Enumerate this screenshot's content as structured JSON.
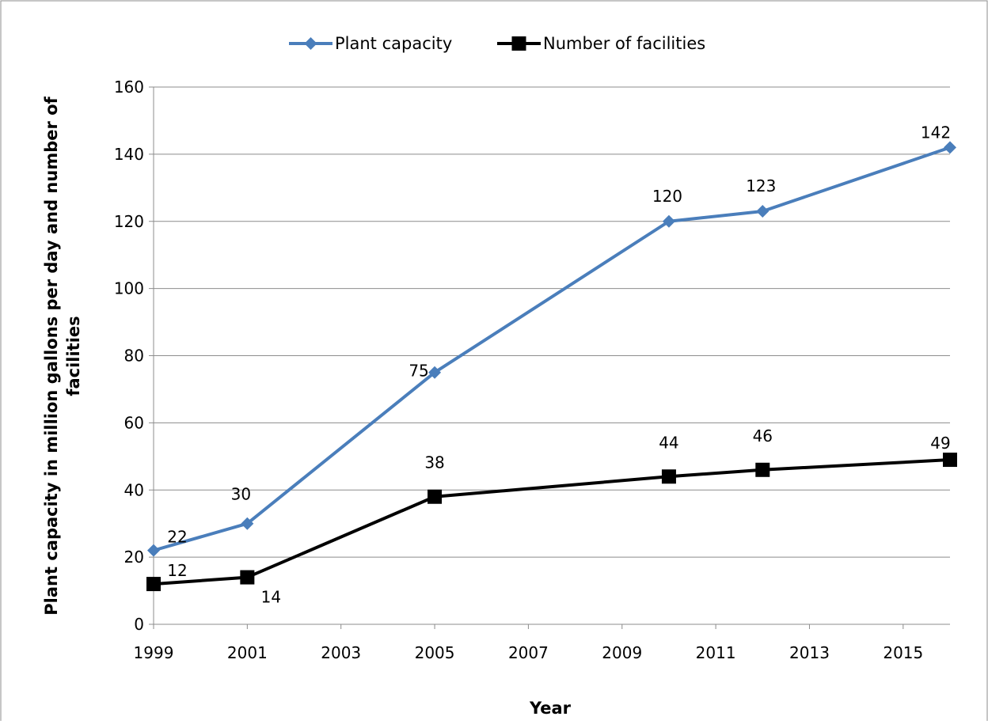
{
  "chart_data": {
    "type": "line",
    "title": "",
    "xlabel": "Year",
    "ylabel": "Plant capacity in million gallons per day and number of facilities",
    "xlim": [
      1999,
      2016
    ],
    "ylim": [
      0,
      160
    ],
    "x_ticks": [
      1999,
      2001,
      2003,
      2005,
      2007,
      2009,
      2011,
      2013,
      2015
    ],
    "y_ticks": [
      0,
      20,
      40,
      60,
      80,
      100,
      120,
      140,
      160
    ],
    "grid": "horizontal",
    "legend_position": "top",
    "x": [
      1999,
      2001,
      2005,
      2010,
      2012,
      2016
    ],
    "series": [
      {
        "name": "Plant capacity",
        "values": [
          22,
          30,
          75,
          120,
          123,
          142
        ],
        "color": "#4a7ebb",
        "marker": "diamond",
        "labels": [
          "22",
          "30",
          "75",
          "120",
          "123",
          "142"
        ]
      },
      {
        "name": "Number of facilities",
        "values": [
          12,
          14,
          38,
          44,
          46,
          49
        ],
        "color": "#000000",
        "marker": "square",
        "labels": [
          "12",
          "14",
          "38",
          "44",
          "46",
          "49"
        ]
      }
    ]
  }
}
